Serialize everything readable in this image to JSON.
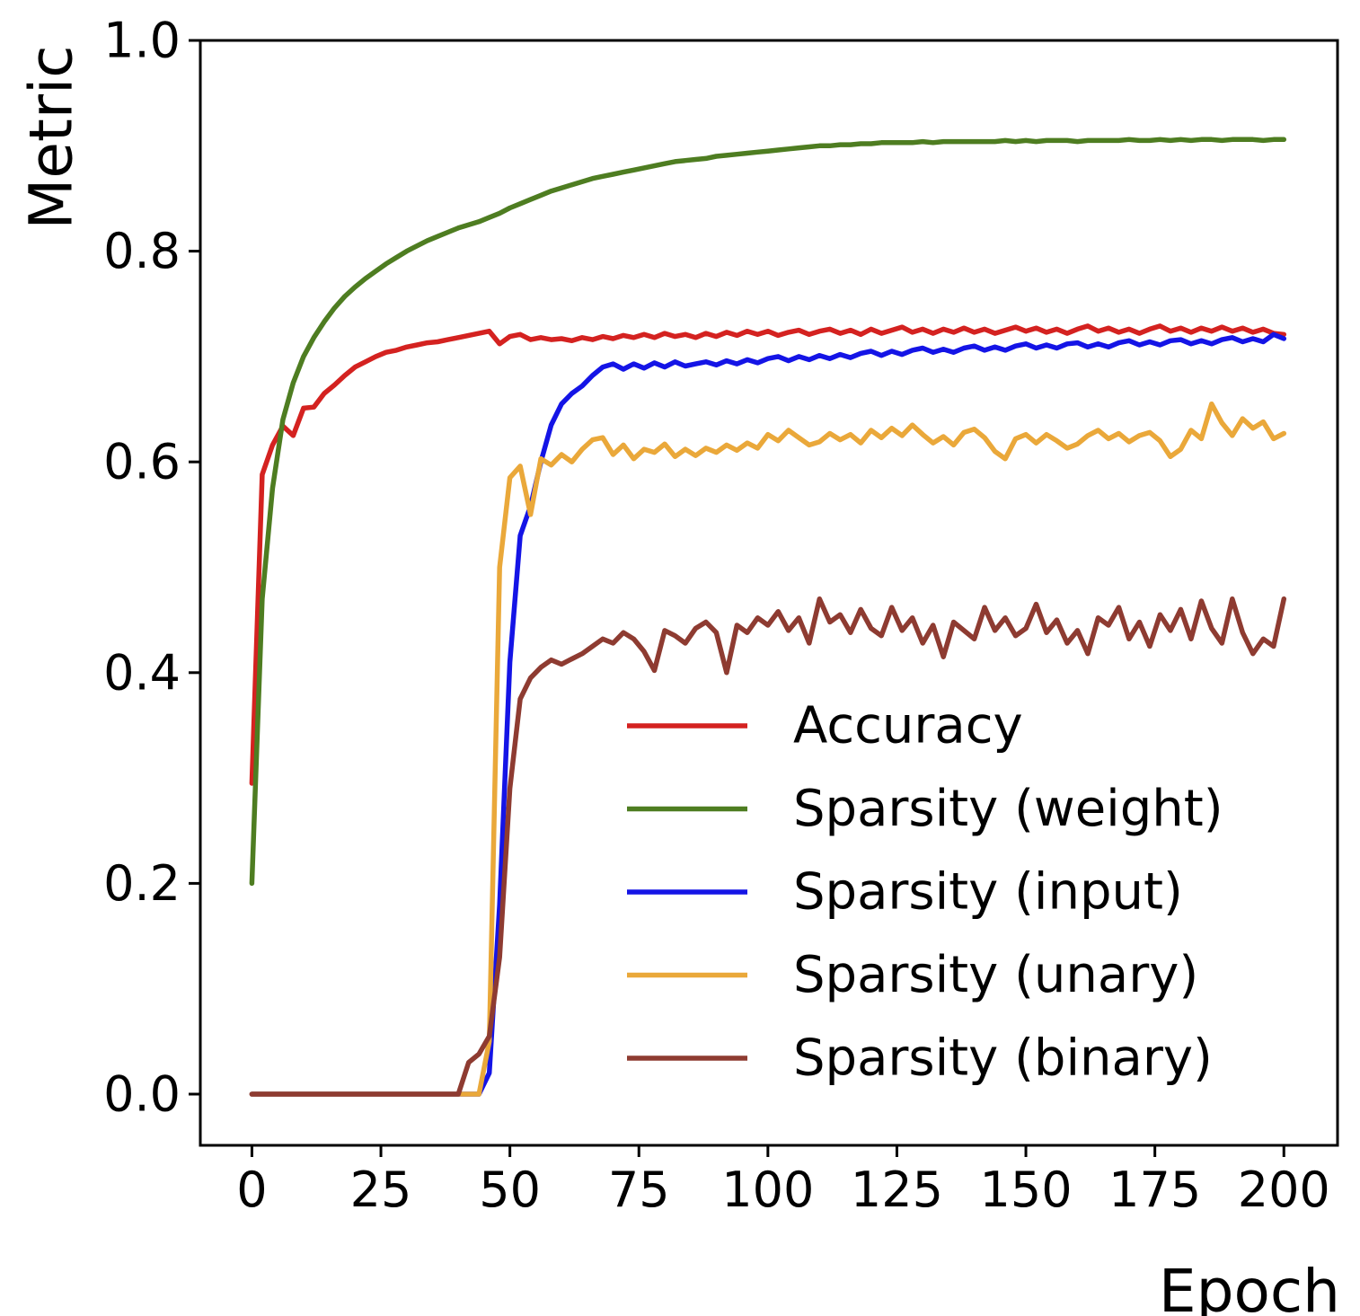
{
  "chart_data": {
    "type": "line",
    "title": "",
    "xlabel": "Epoch",
    "ylabel": "Metric",
    "xlim": [
      -10,
      210.4
    ],
    "ylim": [
      -0.0486,
      1.0
    ],
    "x_ticks": [
      0,
      25,
      50,
      75,
      100,
      125,
      150,
      175,
      200
    ],
    "y_ticks": [
      {
        "value": 0.0,
        "label": "0.0"
      },
      {
        "value": 0.2,
        "label": "0.2"
      },
      {
        "value": 0.4,
        "label": "0.4"
      },
      {
        "value": 0.6,
        "label": "0.6"
      },
      {
        "value": 0.8,
        "label": "0.8"
      },
      {
        "value": 1.0,
        "label": "1.0"
      }
    ],
    "grid": false,
    "legend_position": "lower right",
    "legend_frame": false,
    "x_start": 0,
    "x_step": 2,
    "series": [
      {
        "name": "Accuracy",
        "color": "#d42220",
        "values": [
          0.295,
          0.588,
          0.616,
          0.634,
          0.625,
          0.651,
          0.652,
          0.665,
          0.673,
          0.682,
          0.69,
          0.695,
          0.7,
          0.704,
          0.706,
          0.709,
          0.711,
          0.713,
          0.714,
          0.716,
          0.718,
          0.72,
          0.722,
          0.724,
          0.712,
          0.719,
          0.721,
          0.716,
          0.718,
          0.716,
          0.717,
          0.715,
          0.718,
          0.716,
          0.719,
          0.717,
          0.72,
          0.718,
          0.721,
          0.718,
          0.722,
          0.719,
          0.721,
          0.718,
          0.722,
          0.719,
          0.723,
          0.72,
          0.724,
          0.721,
          0.724,
          0.72,
          0.723,
          0.725,
          0.721,
          0.724,
          0.726,
          0.722,
          0.725,
          0.721,
          0.726,
          0.722,
          0.725,
          0.728,
          0.723,
          0.726,
          0.722,
          0.726,
          0.723,
          0.727,
          0.723,
          0.726,
          0.722,
          0.725,
          0.728,
          0.724,
          0.727,
          0.723,
          0.726,
          0.722,
          0.726,
          0.729,
          0.724,
          0.727,
          0.723,
          0.726,
          0.722,
          0.726,
          0.729,
          0.724,
          0.727,
          0.723,
          0.727,
          0.724,
          0.728,
          0.724,
          0.727,
          0.723,
          0.726,
          0.722,
          0.721
        ]
      },
      {
        "name": "Sparsity (weight)",
        "color": "#4e7d21",
        "values": [
          0.2,
          0.47,
          0.575,
          0.64,
          0.675,
          0.7,
          0.718,
          0.733,
          0.746,
          0.757,
          0.766,
          0.774,
          0.781,
          0.788,
          0.794,
          0.8,
          0.805,
          0.81,
          0.814,
          0.818,
          0.822,
          0.825,
          0.828,
          0.832,
          0.836,
          0.841,
          0.845,
          0.849,
          0.853,
          0.857,
          0.86,
          0.863,
          0.866,
          0.869,
          0.871,
          0.873,
          0.875,
          0.877,
          0.879,
          0.881,
          0.883,
          0.885,
          0.886,
          0.887,
          0.888,
          0.89,
          0.891,
          0.892,
          0.893,
          0.894,
          0.895,
          0.896,
          0.897,
          0.898,
          0.899,
          0.9,
          0.9,
          0.901,
          0.901,
          0.902,
          0.902,
          0.903,
          0.903,
          0.903,
          0.903,
          0.904,
          0.903,
          0.904,
          0.904,
          0.904,
          0.904,
          0.904,
          0.904,
          0.905,
          0.904,
          0.905,
          0.904,
          0.905,
          0.905,
          0.905,
          0.904,
          0.905,
          0.905,
          0.905,
          0.905,
          0.906,
          0.905,
          0.905,
          0.906,
          0.905,
          0.906,
          0.905,
          0.906,
          0.906,
          0.905,
          0.906,
          0.906,
          0.906,
          0.905,
          0.906,
          0.906
        ]
      },
      {
        "name": "Sparsity (input)",
        "color": "#1414e6",
        "values": [
          0,
          0,
          0,
          0,
          0,
          0,
          0,
          0,
          0,
          0,
          0,
          0,
          0,
          0,
          0,
          0,
          0,
          0,
          0,
          0,
          0,
          0,
          0,
          0.02,
          0.18,
          0.41,
          0.53,
          0.558,
          0.6,
          0.635,
          0.655,
          0.665,
          0.672,
          0.682,
          0.69,
          0.693,
          0.688,
          0.693,
          0.689,
          0.694,
          0.69,
          0.695,
          0.691,
          0.693,
          0.695,
          0.692,
          0.696,
          0.693,
          0.697,
          0.694,
          0.698,
          0.7,
          0.696,
          0.7,
          0.697,
          0.701,
          0.698,
          0.702,
          0.699,
          0.703,
          0.705,
          0.701,
          0.705,
          0.702,
          0.706,
          0.708,
          0.704,
          0.707,
          0.704,
          0.708,
          0.71,
          0.706,
          0.709,
          0.706,
          0.71,
          0.712,
          0.708,
          0.711,
          0.708,
          0.712,
          0.713,
          0.709,
          0.712,
          0.709,
          0.713,
          0.715,
          0.711,
          0.714,
          0.711,
          0.715,
          0.716,
          0.712,
          0.715,
          0.712,
          0.716,
          0.718,
          0.714,
          0.717,
          0.714,
          0.721,
          0.717
        ]
      },
      {
        "name": "Sparsity (unary)",
        "color": "#eaa83a",
        "values": [
          0,
          0,
          0,
          0,
          0,
          0,
          0,
          0,
          0,
          0,
          0,
          0,
          0,
          0,
          0,
          0,
          0,
          0,
          0,
          0,
          0,
          0,
          0,
          0.05,
          0.5,
          0.585,
          0.596,
          0.55,
          0.603,
          0.597,
          0.607,
          0.6,
          0.612,
          0.621,
          0.623,
          0.607,
          0.616,
          0.603,
          0.612,
          0.609,
          0.617,
          0.605,
          0.612,
          0.606,
          0.613,
          0.609,
          0.616,
          0.611,
          0.618,
          0.613,
          0.626,
          0.62,
          0.63,
          0.623,
          0.616,
          0.619,
          0.627,
          0.621,
          0.626,
          0.618,
          0.63,
          0.623,
          0.632,
          0.625,
          0.635,
          0.626,
          0.618,
          0.624,
          0.616,
          0.628,
          0.631,
          0.623,
          0.61,
          0.603,
          0.622,
          0.626,
          0.618,
          0.626,
          0.62,
          0.613,
          0.617,
          0.625,
          0.63,
          0.622,
          0.627,
          0.619,
          0.625,
          0.628,
          0.62,
          0.605,
          0.612,
          0.63,
          0.622,
          0.655,
          0.637,
          0.625,
          0.641,
          0.632,
          0.638,
          0.622,
          0.627
        ]
      },
      {
        "name": "Sparsity (binary)",
        "color": "#8e3b31",
        "values": [
          0,
          0,
          0,
          0,
          0,
          0,
          0,
          0,
          0,
          0,
          0,
          0,
          0,
          0,
          0,
          0,
          0,
          0,
          0,
          0,
          0,
          0.03,
          0.038,
          0.055,
          0.13,
          0.29,
          0.375,
          0.395,
          0.405,
          0.412,
          0.408,
          0.413,
          0.418,
          0.425,
          0.432,
          0.428,
          0.438,
          0.432,
          0.42,
          0.402,
          0.44,
          0.435,
          0.428,
          0.442,
          0.448,
          0.438,
          0.4,
          0.445,
          0.438,
          0.452,
          0.445,
          0.458,
          0.44,
          0.452,
          0.428,
          0.47,
          0.448,
          0.455,
          0.438,
          0.46,
          0.442,
          0.435,
          0.462,
          0.44,
          0.452,
          0.428,
          0.445,
          0.415,
          0.448,
          0.44,
          0.432,
          0.462,
          0.44,
          0.452,
          0.435,
          0.442,
          0.465,
          0.438,
          0.45,
          0.428,
          0.44,
          0.418,
          0.452,
          0.445,
          0.462,
          0.432,
          0.448,
          0.425,
          0.455,
          0.44,
          0.46,
          0.432,
          0.468,
          0.442,
          0.428,
          0.47,
          0.438,
          0.418,
          0.432,
          0.425,
          0.47
        ]
      }
    ]
  }
}
